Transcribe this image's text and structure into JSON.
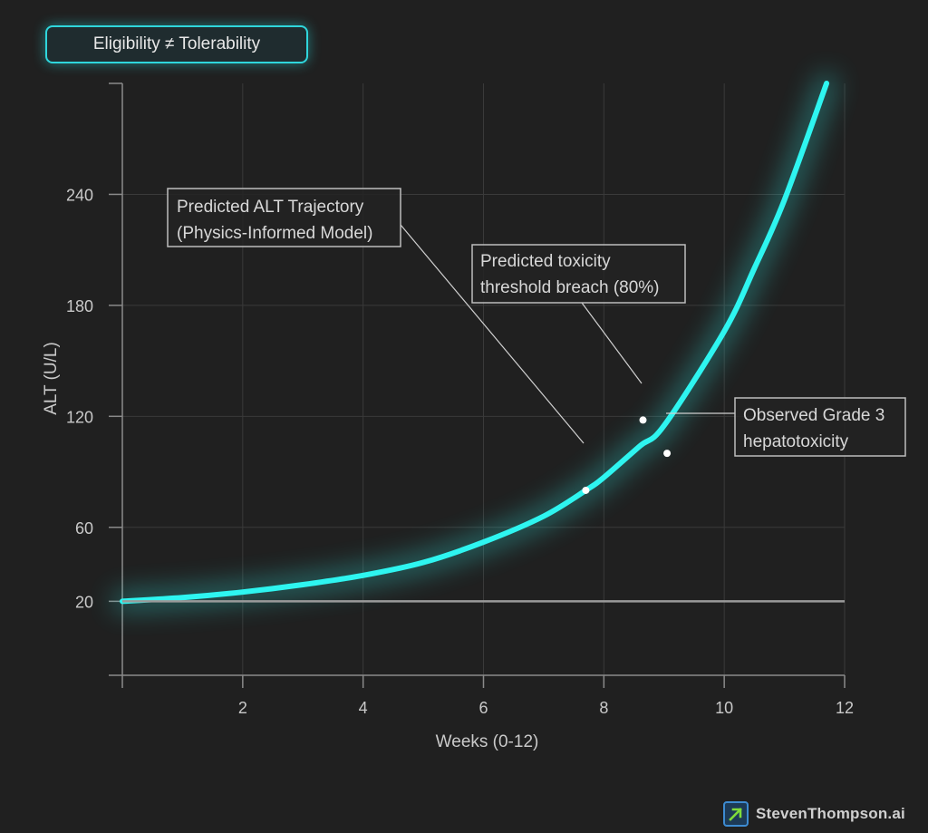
{
  "badge": {
    "label": "Eligibility ≠ Tolerability"
  },
  "brand": {
    "text": "StevenThompson.ai",
    "icon": "arrow-up-right-icon"
  },
  "chart_data": {
    "type": "line",
    "xlabel": "Weeks (0-12)",
    "ylabel": "ALT (U/L)",
    "xlim": [
      0,
      12
    ],
    "ylim": [
      -20,
      300
    ],
    "x_ticks": [
      2,
      4,
      6,
      8,
      10,
      12
    ],
    "y_ticks": [
      20,
      60,
      120,
      180,
      240
    ],
    "grid": true,
    "series": [
      {
        "name": "Predicted ALT Trajectory (Physics-Informed Model)",
        "color": "#2ef5f0",
        "x": [
          0,
          1,
          2,
          3,
          4,
          5,
          6,
          7,
          7.7,
          8,
          8.6,
          9,
          10,
          10.5,
          11,
          11.7
        ],
        "y": [
          20,
          22,
          25,
          29,
          34,
          41,
          52,
          66,
          80,
          87,
          104,
          115,
          166,
          200,
          237,
          300
        ]
      },
      {
        "name": "Baseline",
        "color": "#9a9a9a",
        "x": [
          0,
          12
        ],
        "y": [
          20,
          20
        ]
      }
    ],
    "annotations": [
      {
        "text_lines": [
          "Predicted ALT Trajectory",
          "(Physics-Informed Model)"
        ],
        "point": [
          7.7,
          80
        ]
      },
      {
        "text_lines": [
          "Predicted toxicity",
          "threshold breach (80%)"
        ],
        "point": [
          8.65,
          118
        ]
      },
      {
        "text_lines": [
          "Observed Grade 3",
          " hepatotoxicity"
        ],
        "point": [
          9.05,
          100
        ]
      }
    ]
  }
}
